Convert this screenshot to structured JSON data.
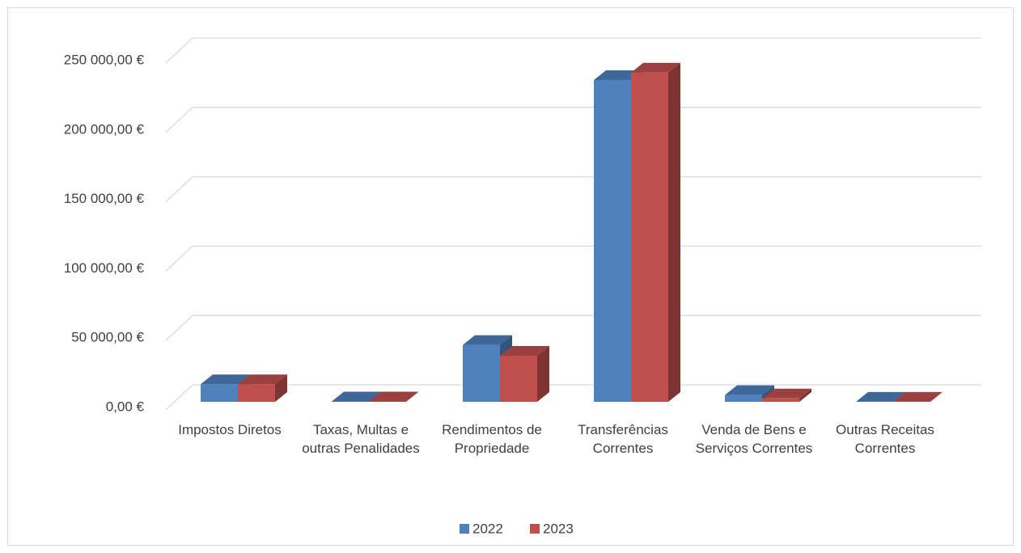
{
  "chart_data": {
    "type": "bar3d",
    "categories": [
      "Impostos Diretos",
      "Taxas, Multas e outras Penalidades",
      "Rendimentos de Propriedade",
      "Transferências Correntes",
      "Venda de Bens e Serviços Correntes",
      "Outras Receitas Correntes"
    ],
    "series": [
      {
        "name": "2022",
        "color": "#4f81bd",
        "values": [
          13000,
          300,
          42000,
          237500,
          5000,
          100
        ]
      },
      {
        "name": "2023",
        "color": "#c0504d",
        "values": [
          13000,
          300,
          34000,
          243000,
          2500,
          100
        ]
      }
    ],
    "ylim": [
      0,
      250000
    ],
    "yticks": [
      {
        "value": 0,
        "label": "0,00 €"
      },
      {
        "value": 50000,
        "label": "50 000,00 €"
      },
      {
        "value": 100000,
        "label": "100 000,00 €"
      },
      {
        "value": 150000,
        "label": "150 000,00 €"
      },
      {
        "value": 200000,
        "label": "200 000,00 €"
      },
      {
        "value": 250000,
        "label": "250 000,00 €"
      }
    ],
    "grid": true,
    "legend": "bottom"
  }
}
